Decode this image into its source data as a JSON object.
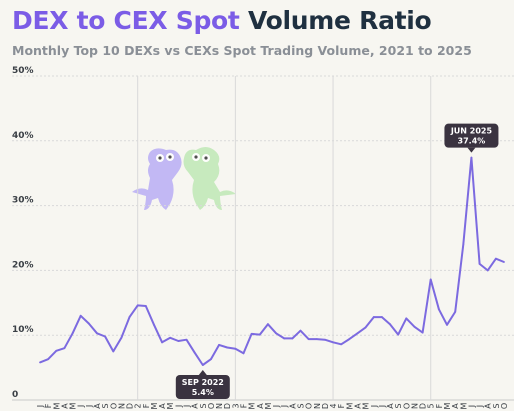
{
  "header": {
    "title_accent": "DEX to CEX Spot",
    "title_rest": "Volume Ratio",
    "subtitle": "Monthly Top 10 DEXs vs CEXs Spot Trading Volume, 2021 to 2025"
  },
  "colors": {
    "accent": "#7b5ce6",
    "line": "#7c6ae0",
    "title_dark": "#1f3040",
    "callout_bg": "#3a3340",
    "grid": "#d9d9d9",
    "mascot_purple": "#b9aef5",
    "mascot_green": "#bfe8b6"
  },
  "chart_data": {
    "type": "line",
    "title": "DEX to CEX Spot Volume Ratio",
    "subtitle": "Monthly Top 10 DEXs vs CEXs Spot Trading Volume, 2021 to 2025",
    "ylim": [
      0,
      50
    ],
    "yticks": [
      "0",
      "10%",
      "20%",
      "30%",
      "40%",
      "50%"
    ],
    "grid": "horizontal dashed; vertical at year boundaries",
    "x": [
      "Jan 2021",
      "Feb 2021",
      "Mar 2021",
      "Apr 2021",
      "May 2021",
      "Jun 2021",
      "Jul 2021",
      "Aug 2021",
      "Sep 2021",
      "Oct 2021",
      "Nov 2021",
      "Dec 2021",
      "Jan 2022",
      "Feb 2022",
      "Mar 2022",
      "Apr 2022",
      "May 2022",
      "Jun 2022",
      "Jul 2022",
      "Aug 2022",
      "Sep 2022",
      "Oct 2022",
      "Nov 2022",
      "Dec 2022",
      "Jan 2023",
      "Feb 2023",
      "Mar 2023",
      "Apr 2023",
      "May 2023",
      "Jun 2023",
      "Jul 2023",
      "Aug 2023",
      "Sep 2023",
      "Oct 2023",
      "Nov 2023",
      "Dec 2023",
      "Jan 2024",
      "Feb 2024",
      "Mar 2024",
      "Apr 2024",
      "May 2024",
      "Jun 2024",
      "Jul 2024",
      "Aug 2024",
      "Sep 2024",
      "Oct 2024",
      "Nov 2024",
      "Dec 2024",
      "Jan 2025",
      "Feb 2025",
      "Mar 2025",
      "Apr 2025",
      "May 2025",
      "Jun 2025",
      "Jul 2025",
      "Aug 2025",
      "Sep 2025",
      "Oct 2025"
    ],
    "x_tick_labels": [
      "J",
      "F",
      "M",
      "A",
      "M",
      "J",
      "J",
      "A",
      "S",
      "O",
      "N",
      "D",
      "2",
      "F",
      "M",
      "A",
      "M",
      "J",
      "J",
      "A",
      "S",
      "O",
      "N",
      "D",
      "3",
      "F",
      "M",
      "A",
      "M",
      "J",
      "J",
      "A",
      "S",
      "O",
      "N",
      "D",
      "4",
      "F",
      "M",
      "A",
      "M",
      "J",
      "J",
      "A",
      "S",
      "O",
      "N",
      "D",
      "5",
      "F",
      "M",
      "A",
      "M",
      "J",
      "J",
      "A",
      "S",
      "O"
    ],
    "series": [
      {
        "values": [
          5.8,
          6.3,
          7.6,
          8.0,
          10.3,
          13.0,
          11.8,
          10.3,
          9.8,
          7.5,
          9.6,
          12.8,
          14.6,
          14.5,
          11.6,
          8.9,
          9.6,
          9.1,
          9.3,
          7.3,
          5.4,
          6.3,
          8.5,
          8.1,
          7.9,
          7.2,
          10.2,
          10.1,
          11.7,
          10.3,
          9.5,
          9.5,
          10.7,
          9.4,
          9.4,
          9.3,
          8.9,
          8.6,
          9.4,
          10.3,
          11.2,
          12.8,
          12.8,
          11.7,
          10.1,
          12.6,
          11.3,
          10.4,
          18.6,
          14.0,
          11.6,
          13.6,
          24.0,
          37.4,
          21.0,
          20.0,
          21.8,
          21.3
        ]
      }
    ],
    "annotations": [
      {
        "x": "Sep 2022",
        "label": "SEP 2022",
        "value": "5.4%"
      },
      {
        "x": "Jun 2025",
        "label": "JUN 2025",
        "value": "37.4%"
      }
    ]
  }
}
